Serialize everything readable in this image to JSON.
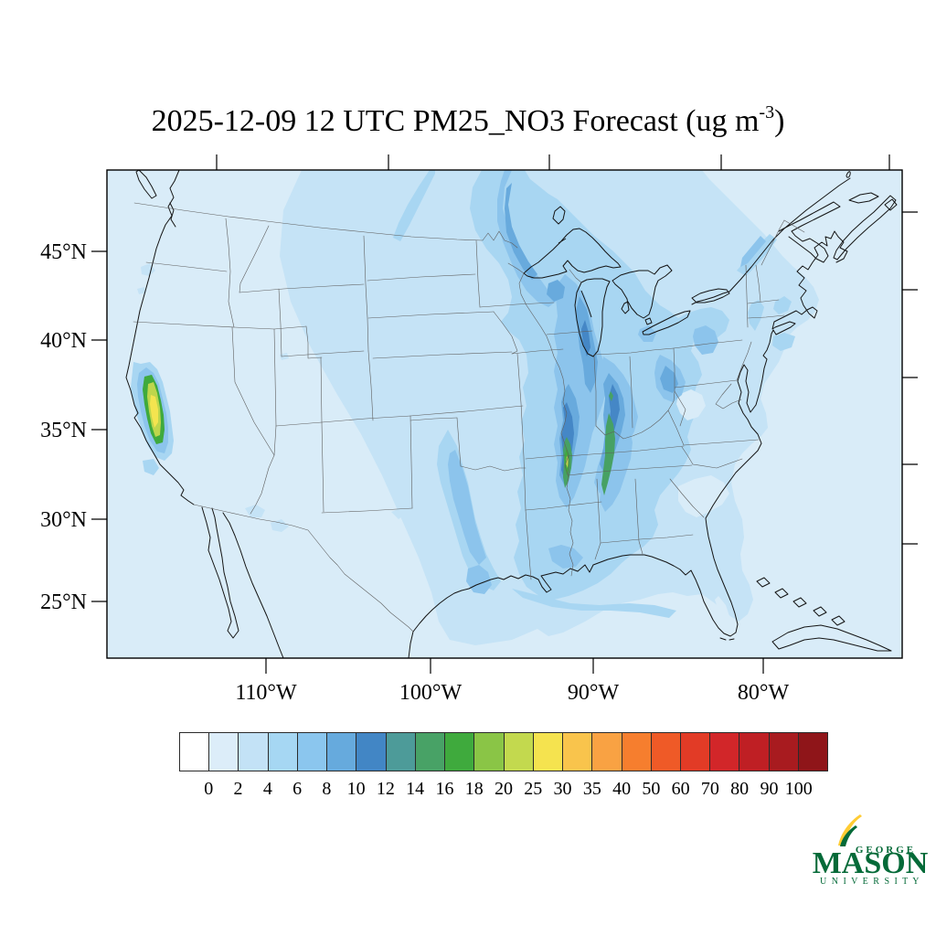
{
  "title": {
    "main": "2025-12-09 12 UTC PM25_NO3 Forecast (ug m",
    "superscript": "-3",
    "suffix": ")"
  },
  "map": {
    "lat_labels": [
      "45°N",
      "40°N",
      "35°N",
      "30°N",
      "25°N"
    ],
    "lon_labels": [
      "110°W",
      "100°W",
      "90°W",
      "80°W"
    ]
  },
  "colorbar": {
    "labels": [
      "0",
      "2",
      "4",
      "6",
      "8",
      "10",
      "12",
      "14",
      "16",
      "18",
      "20",
      "25",
      "30",
      "35",
      "40",
      "50",
      "60",
      "70",
      "80",
      "90",
      "100"
    ],
    "colors": [
      "#ffffff",
      "#dcedf9",
      "#c3e2f6",
      "#a6d7f3",
      "#8bc6ee",
      "#66aadd",
      "#4286c5",
      "#4d9b99",
      "#48a266",
      "#3faa3d",
      "#8ac546",
      "#c3d94e",
      "#f5e34f",
      "#f9c44c",
      "#f9a243",
      "#f67e2e",
      "#ef5a27",
      "#e23b26",
      "#d22629",
      "#bf1f24",
      "#a81b1f",
      "#8f1519"
    ]
  },
  "logo": {
    "line1": "GEORGE",
    "line2": "MASON",
    "line3": "U N I V E R S I T Y"
  },
  "palette": {
    "map_bg": "#d9ecf8",
    "l2": "#c5e3f6",
    "l3": "#a8d6f2",
    "l4": "#8cc4ec",
    "l5": "#68aadd",
    "l6": "#4587c6",
    "green_mid": "#47a164",
    "green": "#3faa3d",
    "ygreen": "#bed64c",
    "yellow": "#f4e44f",
    "coast": "#141414",
    "border": "#5f5f5f",
    "logo_green": "#046a38",
    "logo_gold": "#ffcc33"
  },
  "chart_data": {
    "type": "heatmap",
    "subtype": "filled-contour forecast map",
    "title": "2025-12-09 12 UTC PM25_NO3 Forecast (ug m-3)",
    "units": "ug m-3",
    "region": "Continental United States with parts of Canada and Mexico",
    "lat_ticks": [
      "45°N",
      "40°N",
      "35°N",
      "30°N",
      "25°N"
    ],
    "lon_ticks": [
      "110°W",
      "100°W",
      "90°W",
      "80°W"
    ],
    "colorbar_levels": [
      0,
      2,
      4,
      6,
      8,
      10,
      12,
      14,
      16,
      18,
      20,
      25,
      30,
      35,
      40,
      50,
      60,
      70,
      80,
      90,
      100
    ],
    "legend_position": "bottom",
    "grid": false,
    "features": [
      {
        "area": "California Central Valley",
        "value_range": "12-25 ug/m3",
        "note": "strongest hotspot, yellow-green core"
      },
      {
        "area": "Mississippi River valley near Memphis",
        "value_range": "12-20 ug/m3",
        "note": "narrow green streak"
      },
      {
        "area": "Central Tennessee / Kentucky",
        "value_range": "12-16 ug/m3",
        "note": "narrow green streak"
      },
      {
        "area": "Upper Midwest: Minnesota, Lake Michigan, Indiana, Ohio valley",
        "value_range": "6-12 ug/m3"
      },
      {
        "area": "Red River Valley plume extending into Manitoba",
        "value_range": "4-10 ug/m3"
      },
      {
        "area": "Oklahoma to Texas Gulf coast band",
        "value_range": "4-8 ug/m3"
      },
      {
        "area": "Eastern US background",
        "value_range": "2-6 ug/m3"
      },
      {
        "area": "Western mountain states and oceans",
        "value_range": "0-2 ug/m3"
      }
    ]
  }
}
